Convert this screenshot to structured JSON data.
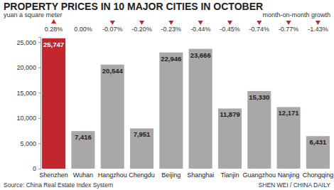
{
  "chart_data": {
    "type": "bar",
    "title": "PROPERTY PRICES IN 10 MAJOR CITIES IN OCTOBER",
    "y_label": "yuan a square meter",
    "categories": [
      "Shenzhen",
      "Wuhan",
      "Hangzhou",
      "Chengdu",
      "Beijing",
      "Shanghai",
      "Tianjin",
      "Guangzhou",
      "Nanjing",
      "Chongqing"
    ],
    "values": [
      25747,
      7416,
      20544,
      7951,
      22946,
      23666,
      11879,
      15330,
      12171,
      6431
    ],
    "value_labels": [
      "25,747",
      "7,416",
      "20,544",
      "7,951",
      "22,946",
      "23,666",
      "11,879",
      "15,330",
      "12,171",
      "6,431"
    ],
    "colors": [
      "#c1272d",
      "#a8a8a8",
      "#a8a8a8",
      "#a8a8a8",
      "#a8a8a8",
      "#a8a8a8",
      "#a8a8a8",
      "#a8a8a8",
      "#a8a8a8",
      "#a8a8a8"
    ],
    "data_labels": true,
    "growth": {
      "name": "month-on-month growth",
      "values": [
        0.28,
        0.0,
        -0.07,
        -0.2,
        -0.23,
        -0.44,
        -0.45,
        -0.74,
        -0.77,
        -1.43
      ],
      "value_labels": [
        "0.28%",
        "0.00%",
        "-0.07%",
        "-0.20%",
        "-0.23%",
        "-0.44%",
        "-0.45%",
        "-0.74%",
        "-0.77%",
        "-1.43%"
      ]
    },
    "ylim": [
      0,
      26000
    ],
    "yticks": [
      0,
      {
        "value": 5000,
        "label": "5,000"
      },
      {
        "value": 10000,
        "label": "10,000"
      },
      {
        "value": 15000,
        "label": "15,000"
      },
      {
        "value": 20000,
        "label": "20,000"
      },
      {
        "value": 25000,
        "label": "25,000"
      }
    ],
    "grid": false,
    "source": "Source: China Real Estate Index System",
    "credit": "SHEN WEI / CHINA DAILY"
  }
}
